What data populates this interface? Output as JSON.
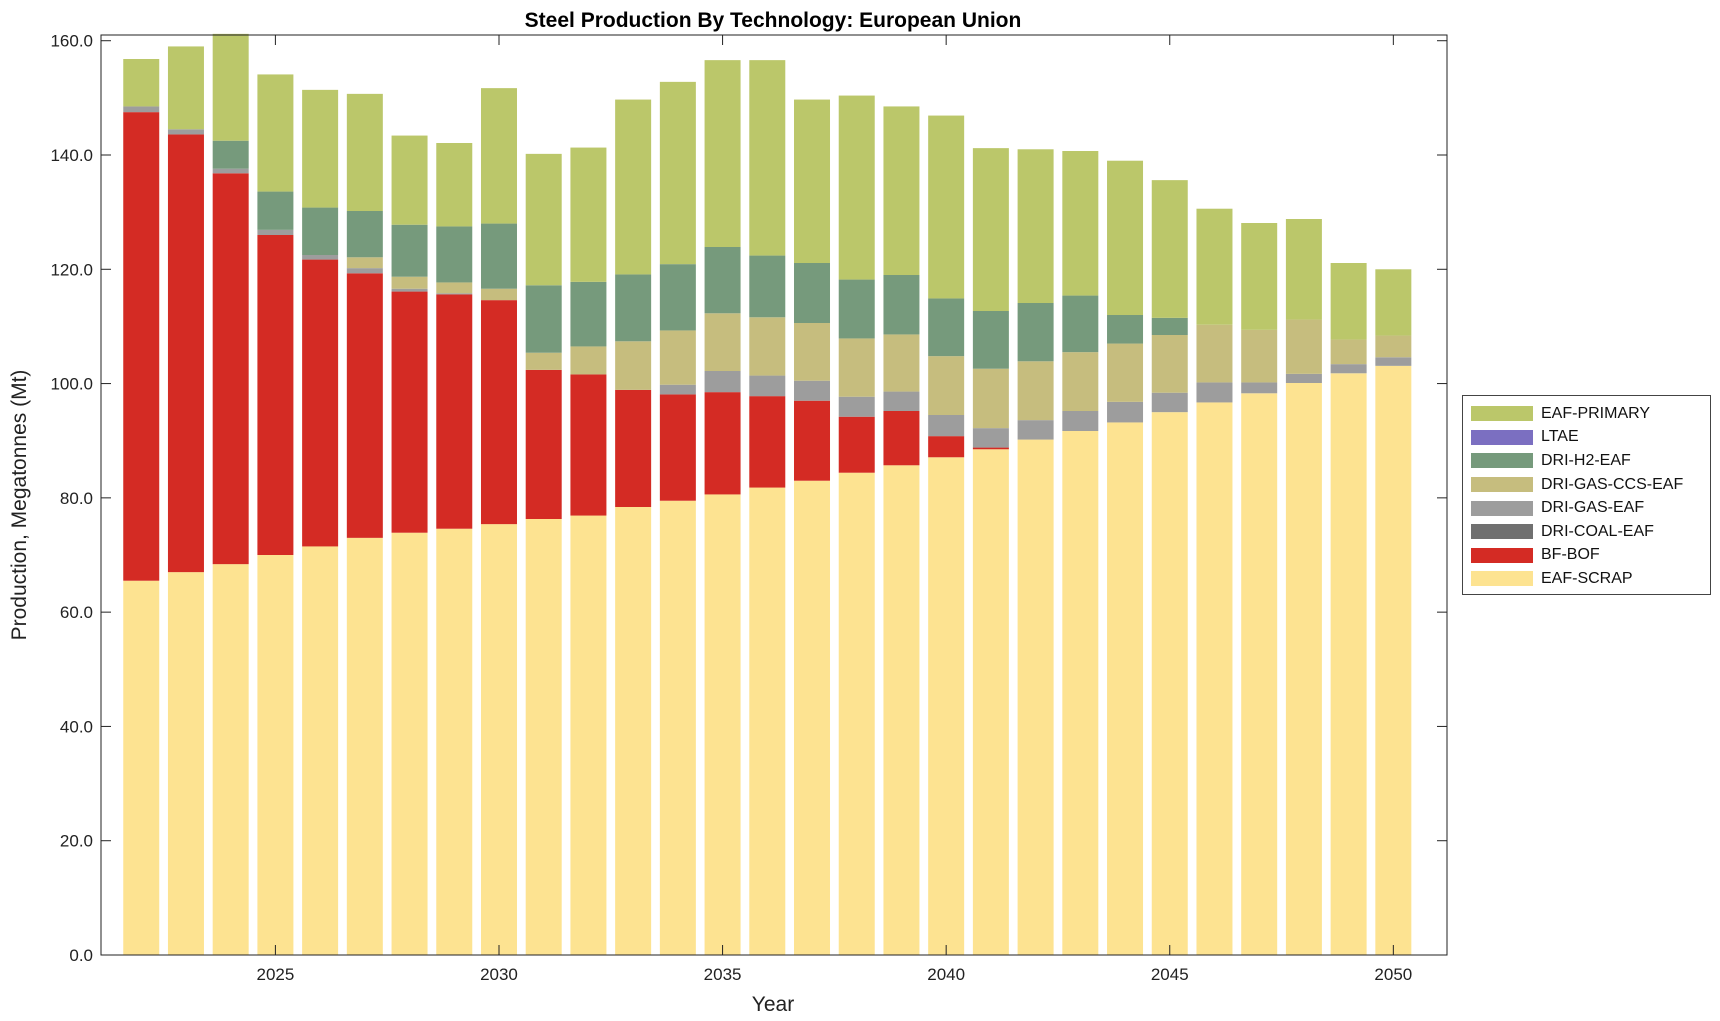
{
  "chart_data": {
    "type": "bar",
    "stacked": true,
    "title": "Steel Production By Technology: European Union",
    "xlabel": "Year",
    "ylabel": "Production, Megatonnes (Mt)",
    "ylim": [
      0,
      161
    ],
    "xlim": [
      2021.1,
      2051.2
    ],
    "y_ticks": [
      "0.0",
      "20.0",
      "40.0",
      "60.0",
      "80.0",
      "100.0",
      "120.0",
      "140.0",
      "160.0"
    ],
    "y_tick_values": [
      0,
      20,
      40,
      60,
      80,
      100,
      120,
      140,
      160
    ],
    "x_ticks": [
      "2025",
      "2030",
      "2035",
      "2040",
      "2045",
      "2050"
    ],
    "x_tick_values": [
      2025,
      2030,
      2035,
      2040,
      2045,
      2050
    ],
    "grid": false,
    "legend_position": "right",
    "x": [
      2022,
      2023,
      2024,
      2025,
      2026,
      2027,
      2028,
      2029,
      2030,
      2031,
      2032,
      2033,
      2034,
      2035,
      2036,
      2037,
      2038,
      2039,
      2040,
      2041,
      2042,
      2043,
      2044,
      2045,
      2046,
      2047,
      2048,
      2049,
      2050
    ],
    "series": [
      {
        "name": "EAF-SCRAP",
        "color": "#fde391",
        "values": [
          65.5,
          67.0,
          68.4,
          70.0,
          71.5,
          73.0,
          73.9,
          74.6,
          75.4,
          76.3,
          76.9,
          78.4,
          79.5,
          80.6,
          81.8,
          83.0,
          84.4,
          85.7,
          87.1,
          88.5,
          90.2,
          91.7,
          93.2,
          95.0,
          96.7,
          98.3,
          100.1,
          101.8,
          103.1
        ]
      },
      {
        "name": "BF-BOF",
        "color": "#d42b24",
        "values": [
          82.0,
          76.6,
          68.4,
          56.0,
          50.2,
          46.3,
          42.2,
          41.0,
          39.2,
          26.1,
          24.7,
          20.5,
          18.6,
          17.9,
          16.0,
          14.0,
          9.8,
          9.5,
          3.7,
          0.3,
          0,
          0,
          0,
          0,
          0,
          0,
          0,
          0,
          0
        ]
      },
      {
        "name": "DRI-COAL-EAF",
        "color": "#707070",
        "values": [
          0,
          0,
          0,
          0,
          0,
          0,
          0,
          0,
          0,
          0,
          0,
          0,
          0,
          0,
          0,
          0,
          0,
          0,
          0,
          0,
          0,
          0,
          0,
          0,
          0,
          0,
          0,
          0,
          0
        ]
      },
      {
        "name": "DRI-GAS-EAF",
        "color": "#9d9d9d",
        "values": [
          1.0,
          0.9,
          0.8,
          0.9,
          0.8,
          0.9,
          0.5,
          0.2,
          0,
          0,
          0,
          0,
          1.7,
          3.7,
          3.6,
          3.5,
          3.5,
          3.4,
          3.7,
          3.4,
          3.4,
          3.5,
          3.6,
          3.4,
          3.5,
          1.9,
          1.6,
          1.6,
          1.5
        ]
      },
      {
        "name": "DRI-GAS-CCS-EAF",
        "color": "#c6bd7e",
        "values": [
          0,
          0,
          0,
          0,
          0,
          1.9,
          2.1,
          1.9,
          2.0,
          3.0,
          4.9,
          8.5,
          9.5,
          10.1,
          10.2,
          10.1,
          10.2,
          10.0,
          10.3,
          10.4,
          10.3,
          10.3,
          10.2,
          10.1,
          10.1,
          9.2,
          9.5,
          4.3,
          3.8
        ]
      },
      {
        "name": "DRI-H2-EAF",
        "color": "#769a7c",
        "values": [
          0,
          0,
          4.9,
          6.7,
          8.3,
          8.1,
          9.1,
          9.8,
          11.4,
          11.8,
          11.3,
          11.7,
          11.6,
          11.6,
          10.8,
          10.5,
          10.3,
          10.4,
          10.1,
          10.1,
          10.2,
          9.9,
          5.0,
          3.0,
          0,
          0,
          0,
          0,
          0
        ]
      },
      {
        "name": "LTAE",
        "color": "#7b6fc1",
        "values": [
          0,
          0,
          0,
          0,
          0,
          0,
          0,
          0,
          0,
          0,
          0,
          0,
          0,
          0,
          0,
          0,
          0,
          0,
          0,
          0,
          0,
          0,
          0,
          0,
          0,
          0,
          0,
          0,
          0
        ]
      },
      {
        "name": "EAF-PRIMARY",
        "color": "#bbc76a",
        "values": [
          8.3,
          14.5,
          18.7,
          20.5,
          20.6,
          20.5,
          15.6,
          14.6,
          23.7,
          23.0,
          23.5,
          30.6,
          31.9,
          32.7,
          34.2,
          28.6,
          32.2,
          29.5,
          32.0,
          28.5,
          26.9,
          25.3,
          27.0,
          24.1,
          20.3,
          18.7,
          17.6,
          13.4,
          11.6
        ]
      }
    ]
  },
  "legend": [
    {
      "label": "EAF-PRIMARY",
      "color": "#bbc76a"
    },
    {
      "label": "LTAE",
      "color": "#7b6fc1"
    },
    {
      "label": "DRI-H2-EAF",
      "color": "#769a7c"
    },
    {
      "label": "DRI-GAS-CCS-EAF",
      "color": "#c6bd7e"
    },
    {
      "label": "DRI-GAS-EAF",
      "color": "#9d9d9d"
    },
    {
      "label": "DRI-COAL-EAF",
      "color": "#707070"
    },
    {
      "label": "BF-BOF",
      "color": "#d42b24"
    },
    {
      "label": "EAF-SCRAP",
      "color": "#fde391"
    }
  ]
}
